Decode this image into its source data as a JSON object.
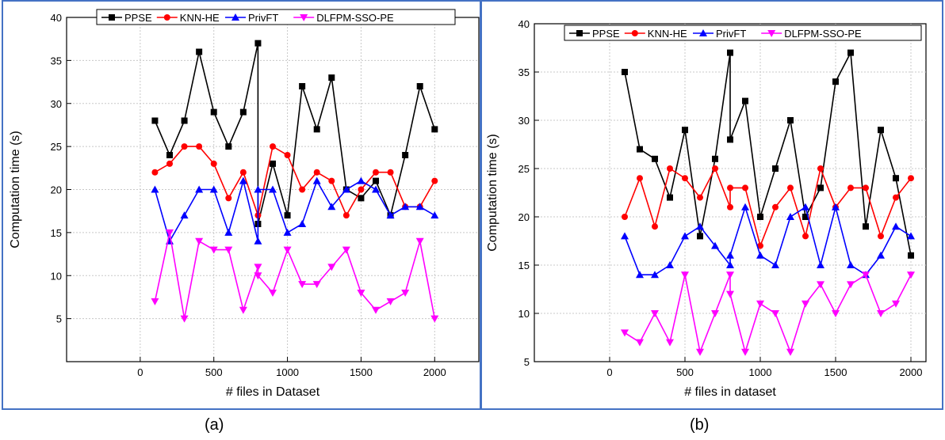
{
  "colors": {
    "frame": "#4472c4",
    "ppse": "#000000",
    "knn_he": "#ff0000",
    "privft": "#0000ff",
    "dlfpm": "#ff00ff"
  },
  "captions": [
    "(a)",
    "(b)"
  ],
  "chart_data": [
    {
      "type": "line",
      "xlabel": "# files in Dataset",
      "ylabel": "Computation time (s)",
      "xlim": [
        -500,
        2300
      ],
      "ylim": [
        0,
        40
      ],
      "xticks": [
        0,
        500,
        1000,
        1500,
        2000
      ],
      "yticks": [
        5,
        10,
        15,
        20,
        25,
        30,
        35,
        40
      ],
      "grid": true,
      "legend_position": "top",
      "series": [
        {
          "name": "PPSE",
          "color": "#000000",
          "marker": "square",
          "x": [
            100,
            200,
            300,
            400,
            500,
            600,
            700,
            800,
            800,
            900,
            1000,
            1100,
            1200,
            1300,
            1400,
            1500,
            1600,
            1700,
            1800,
            1900,
            2000
          ],
          "y": [
            28,
            24,
            28,
            36,
            29,
            25,
            29,
            37,
            16,
            23,
            17,
            32,
            27,
            33,
            20,
            19,
            21,
            17,
            24,
            32,
            27
          ]
        },
        {
          "name": "KNN-HE",
          "color": "#ff0000",
          "marker": "circle",
          "x": [
            100,
            200,
            300,
            400,
            500,
            600,
            700,
            800,
            900,
            1000,
            1100,
            1200,
            1300,
            1400,
            1500,
            1600,
            1700,
            1800,
            1900,
            2000
          ],
          "y": [
            22,
            23,
            25,
            25,
            23,
            19,
            22,
            17,
            25,
            24,
            20,
            22,
            21,
            17,
            20,
            22,
            22,
            18,
            18,
            21
          ]
        },
        {
          "name": "PrivFT",
          "color": "#0000ff",
          "marker": "triangle-up",
          "x": [
            100,
            200,
            300,
            400,
            500,
            600,
            700,
            800,
            800,
            900,
            1000,
            1100,
            1200,
            1300,
            1400,
            1500,
            1600,
            1700,
            1800,
            1900,
            2000
          ],
          "y": [
            20,
            14,
            17,
            20,
            20,
            15,
            21,
            14,
            20,
            20,
            15,
            16,
            21,
            18,
            20,
            21,
            20,
            17,
            18,
            18,
            17
          ]
        },
        {
          "name": "DLFPM-SSO-PE",
          "color": "#ff00ff",
          "marker": "triangle-down",
          "x": [
            100,
            200,
            300,
            400,
            500,
            600,
            700,
            800,
            800,
            900,
            1000,
            1100,
            1200,
            1300,
            1400,
            1500,
            1600,
            1700,
            1800,
            1900,
            2000
          ],
          "y": [
            7,
            15,
            5,
            14,
            13,
            13,
            6,
            11,
            10,
            8,
            13,
            9,
            9,
            11,
            13,
            8,
            6,
            7,
            8,
            14,
            5
          ]
        }
      ]
    },
    {
      "type": "line",
      "xlabel": "# files in dataset",
      "ylabel": "Computation time (s)",
      "xlim": [
        -500,
        2100
      ],
      "ylim": [
        5,
        40
      ],
      "xticks": [
        0,
        500,
        1000,
        1500,
        2000
      ],
      "yticks": [
        5,
        10,
        15,
        20,
        25,
        30,
        35,
        40
      ],
      "grid": true,
      "legend_position": "top",
      "series": [
        {
          "name": "PPSE",
          "color": "#000000",
          "marker": "square",
          "x": [
            100,
            200,
            300,
            400,
            500,
            600,
            700,
            800,
            800,
            900,
            1000,
            1100,
            1200,
            1300,
            1400,
            1500,
            1600,
            1700,
            1800,
            1900,
            2000
          ],
          "y": [
            35,
            27,
            26,
            22,
            29,
            18,
            26,
            37,
            28,
            32,
            20,
            25,
            30,
            20,
            23,
            34,
            37,
            19,
            29,
            24,
            16
          ]
        },
        {
          "name": "KNN-HE",
          "color": "#ff0000",
          "marker": "circle",
          "x": [
            100,
            200,
            300,
            400,
            500,
            600,
            700,
            800,
            800,
            900,
            1000,
            1100,
            1200,
            1300,
            1400,
            1500,
            1600,
            1700,
            1800,
            1900,
            2000
          ],
          "y": [
            20,
            24,
            19,
            25,
            24,
            22,
            25,
            21,
            23,
            23,
            17,
            21,
            23,
            18,
            25,
            21,
            23,
            23,
            18,
            22,
            24
          ]
        },
        {
          "name": "PrivFT",
          "color": "#0000ff",
          "marker": "triangle-up",
          "x": [
            100,
            200,
            300,
            400,
            500,
            600,
            700,
            800,
            800,
            900,
            1000,
            1100,
            1200,
            1300,
            1400,
            1500,
            1600,
            1700,
            1800,
            1900,
            2000
          ],
          "y": [
            18,
            14,
            14,
            15,
            18,
            19,
            17,
            15,
            16,
            21,
            16,
            15,
            20,
            21,
            15,
            21,
            15,
            14,
            16,
            19,
            18
          ]
        },
        {
          "name": "DLFPM-SSO-PE",
          "color": "#ff00ff",
          "marker": "triangle-down",
          "x": [
            100,
            200,
            300,
            400,
            500,
            600,
            700,
            800,
            800,
            900,
            1000,
            1100,
            1200,
            1300,
            1400,
            1500,
            1600,
            1700,
            1800,
            1900,
            2000
          ],
          "y": [
            8,
            7,
            10,
            7,
            14,
            6,
            10,
            14,
            12,
            6,
            11,
            10,
            6,
            11,
            13,
            10,
            13,
            14,
            10,
            11,
            14
          ]
        }
      ]
    }
  ]
}
